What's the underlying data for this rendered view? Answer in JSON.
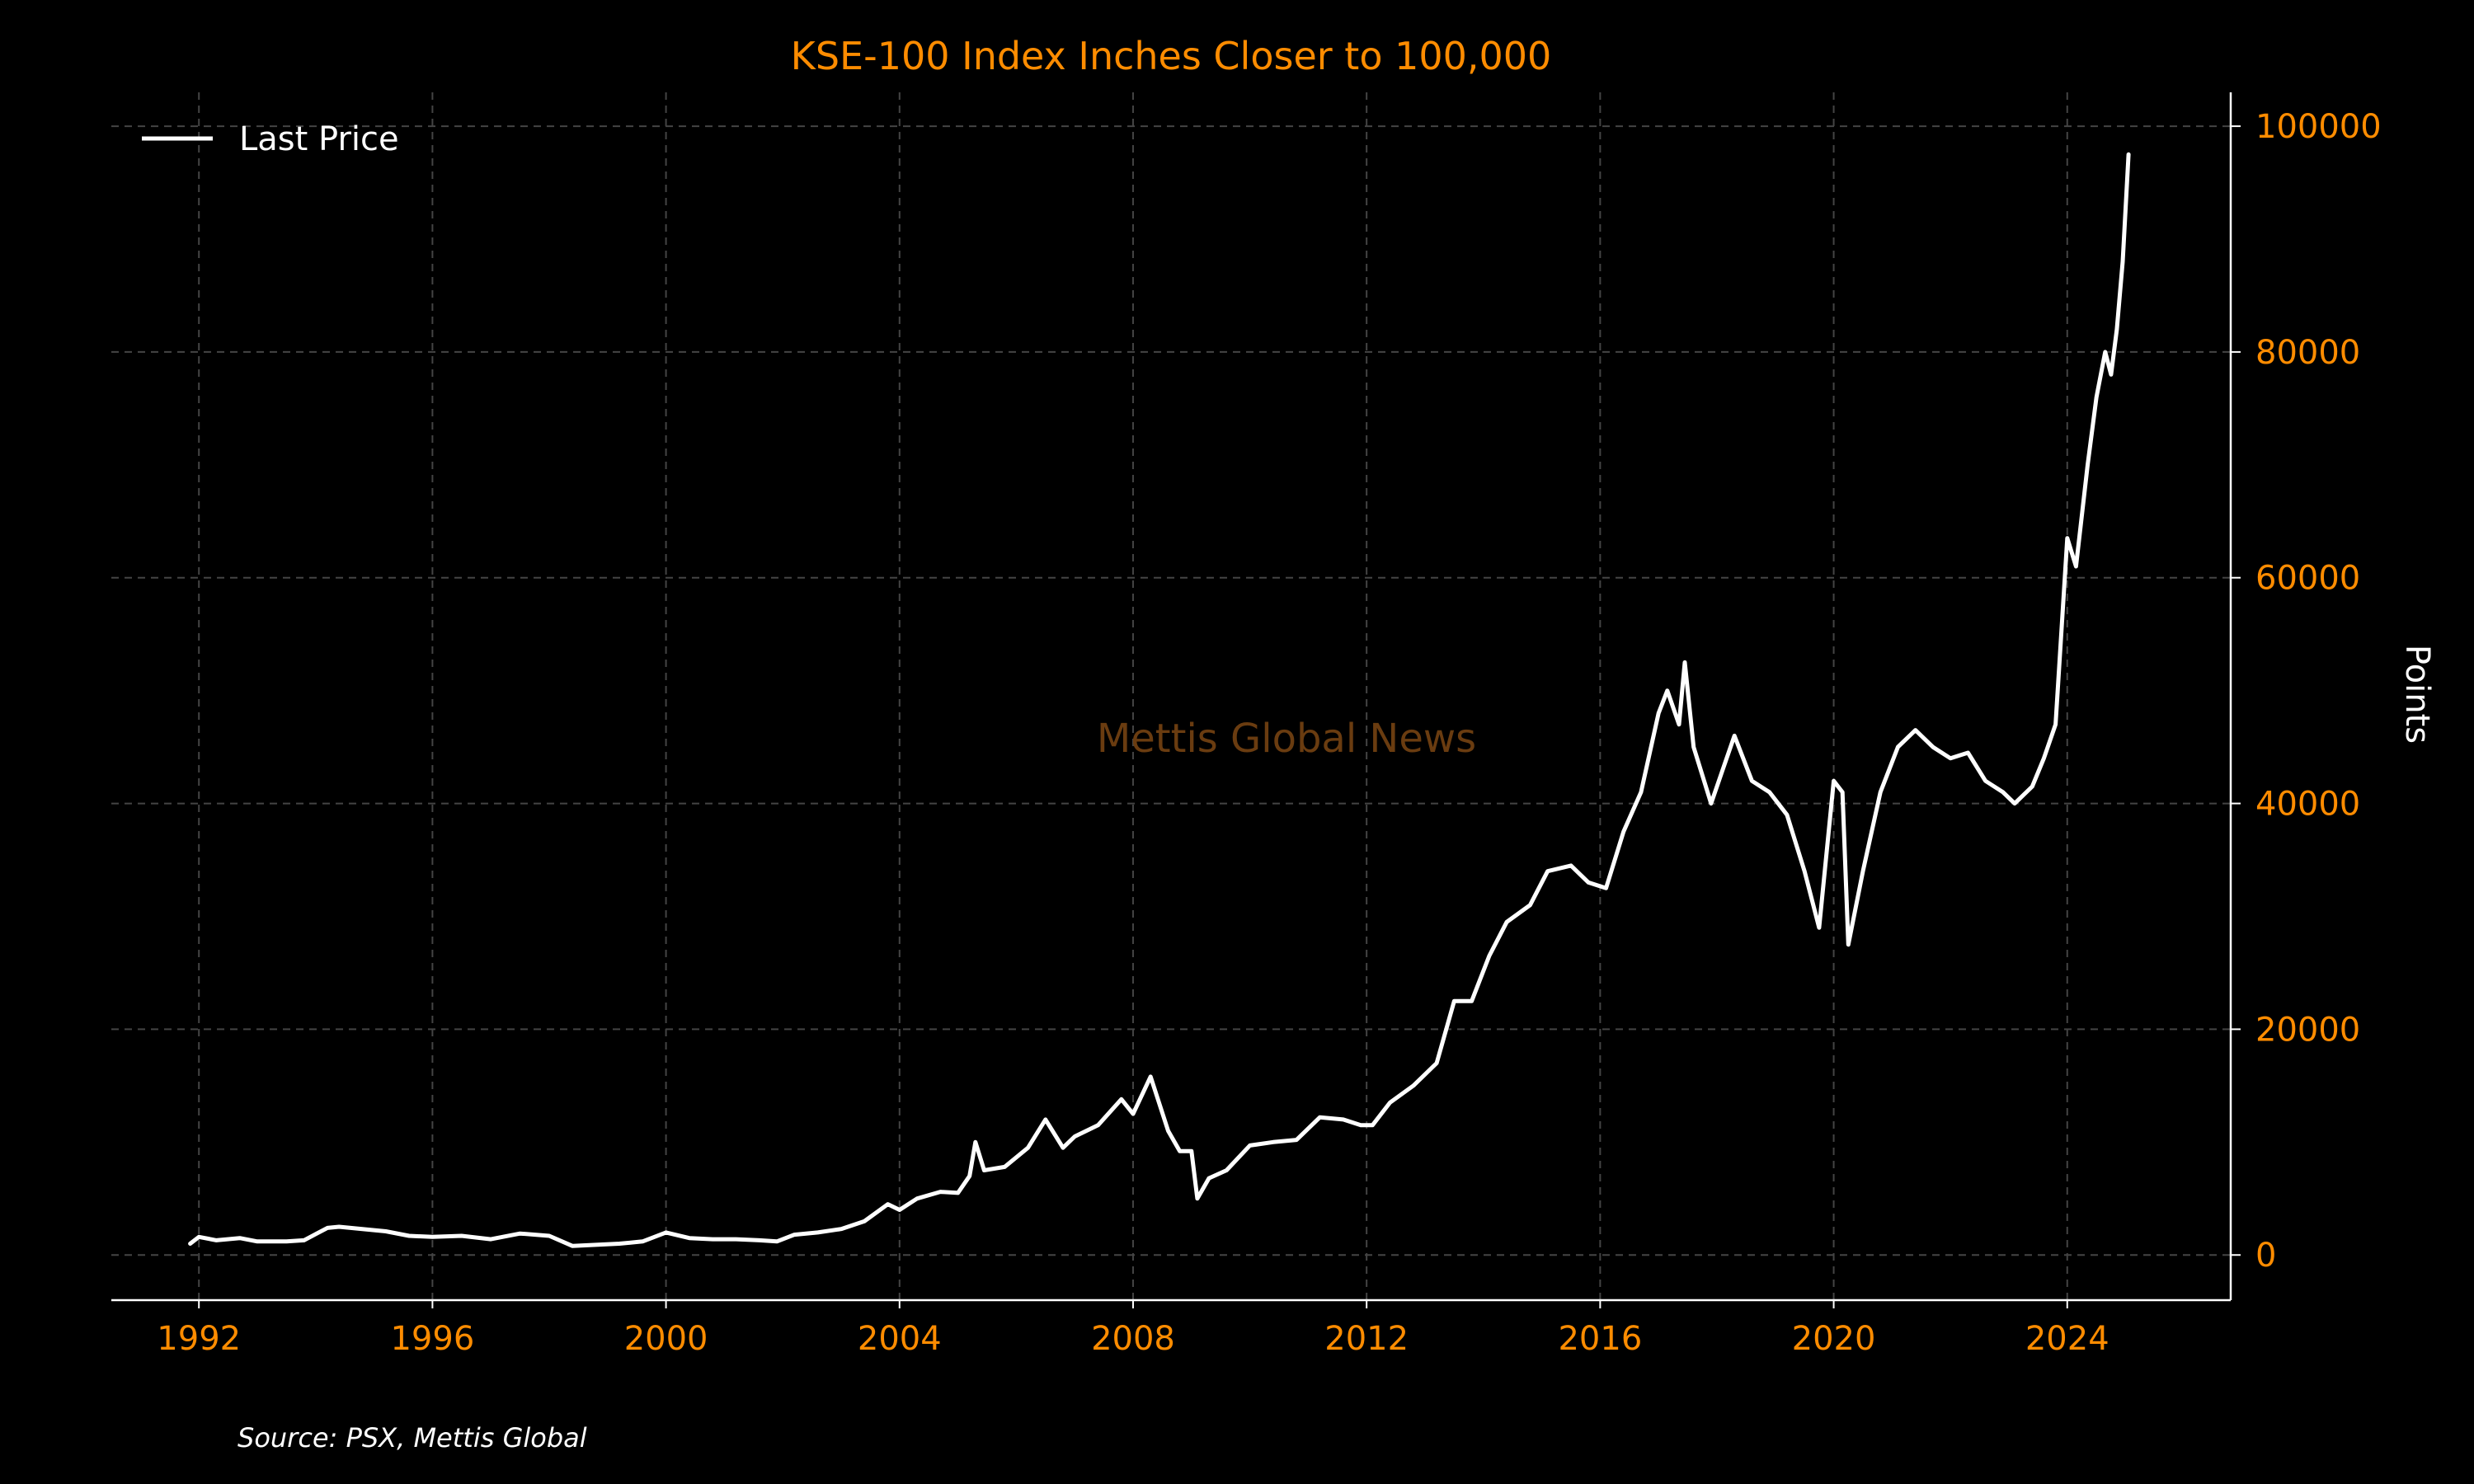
{
  "chart_data": {
    "type": "line",
    "title": "KSE-100 Index Inches Closer to 100,000",
    "xlabel": "",
    "ylabel": "Points",
    "xlim": [
      1990.5,
      2026.8
    ],
    "ylim": [
      -4000,
      103000
    ],
    "x_ticks": [
      1992,
      1996,
      2000,
      2004,
      2008,
      2012,
      2016,
      2020,
      2024
    ],
    "x_tick_labels": [
      "1992",
      "1996",
      "2000",
      "2004",
      "2008",
      "2012",
      "2016",
      "2020",
      "2024"
    ],
    "y_ticks": [
      0,
      20000,
      40000,
      60000,
      80000,
      100000
    ],
    "y_tick_labels": [
      "0",
      "20000",
      "40000",
      "60000",
      "80000",
      "100000"
    ],
    "grid": true,
    "legend_position": "top-left",
    "series": [
      {
        "name": "Last Price",
        "color": "#ffffff",
        "points": [
          [
            1991.85,
            1000
          ],
          [
            1992.0,
            1600
          ],
          [
            1992.3,
            1300
          ],
          [
            1992.7,
            1500
          ],
          [
            1993.0,
            1200
          ],
          [
            1993.5,
            1200
          ],
          [
            1993.8,
            1300
          ],
          [
            1994.2,
            2400
          ],
          [
            1994.4,
            2500
          ],
          [
            1994.8,
            2300
          ],
          [
            1995.2,
            2100
          ],
          [
            1995.6,
            1700
          ],
          [
            1996.0,
            1600
          ],
          [
            1996.5,
            1700
          ],
          [
            1997.0,
            1400
          ],
          [
            1997.5,
            1900
          ],
          [
            1998.0,
            1700
          ],
          [
            1998.4,
            800
          ],
          [
            1998.8,
            900
          ],
          [
            1999.2,
            1000
          ],
          [
            1999.6,
            1200
          ],
          [
            2000.0,
            2000
          ],
          [
            2000.4,
            1500
          ],
          [
            2000.8,
            1400
          ],
          [
            2001.2,
            1400
          ],
          [
            2001.6,
            1300
          ],
          [
            2001.9,
            1200
          ],
          [
            2002.2,
            1800
          ],
          [
            2002.6,
            2000
          ],
          [
            2003.0,
            2300
          ],
          [
            2003.4,
            3000
          ],
          [
            2003.8,
            4500
          ],
          [
            2004.0,
            4000
          ],
          [
            2004.3,
            5000
          ],
          [
            2004.7,
            5600
          ],
          [
            2005.0,
            5500
          ],
          [
            2005.2,
            7000
          ],
          [
            2005.3,
            10000
          ],
          [
            2005.45,
            7500
          ],
          [
            2005.8,
            7800
          ],
          [
            2006.2,
            9500
          ],
          [
            2006.5,
            12000
          ],
          [
            2006.8,
            9500
          ],
          [
            2007.0,
            10500
          ],
          [
            2007.4,
            11500
          ],
          [
            2007.8,
            13800
          ],
          [
            2008.0,
            12500
          ],
          [
            2008.3,
            15800
          ],
          [
            2008.6,
            11000
          ],
          [
            2008.8,
            9200
          ],
          [
            2009.0,
            9200
          ],
          [
            2009.1,
            5000
          ],
          [
            2009.3,
            6800
          ],
          [
            2009.6,
            7500
          ],
          [
            2010.0,
            9700
          ],
          [
            2010.4,
            10000
          ],
          [
            2010.8,
            10200
          ],
          [
            2011.2,
            12200
          ],
          [
            2011.6,
            12000
          ],
          [
            2011.9,
            11500
          ],
          [
            2012.1,
            11500
          ],
          [
            2012.4,
            13500
          ],
          [
            2012.8,
            15000
          ],
          [
            2013.2,
            17000
          ],
          [
            2013.5,
            22500
          ],
          [
            2013.8,
            22500
          ],
          [
            2014.1,
            26500
          ],
          [
            2014.4,
            29500
          ],
          [
            2014.8,
            31000
          ],
          [
            2015.1,
            34000
          ],
          [
            2015.5,
            34500
          ],
          [
            2015.8,
            33000
          ],
          [
            2016.1,
            32500
          ],
          [
            2016.4,
            37500
          ],
          [
            2016.7,
            41000
          ],
          [
            2017.0,
            48000
          ],
          [
            2017.15,
            50000
          ],
          [
            2017.35,
            47000
          ],
          [
            2017.45,
            52500
          ],
          [
            2017.6,
            45000
          ],
          [
            2017.9,
            40000
          ],
          [
            2018.1,
            43000
          ],
          [
            2018.3,
            46000
          ],
          [
            2018.6,
            42000
          ],
          [
            2018.9,
            41000
          ],
          [
            2019.2,
            39000
          ],
          [
            2019.5,
            34000
          ],
          [
            2019.75,
            29000
          ],
          [
            2020.0,
            42000
          ],
          [
            2020.15,
            41000
          ],
          [
            2020.25,
            27500
          ],
          [
            2020.5,
            34000
          ],
          [
            2020.8,
            41000
          ],
          [
            2021.1,
            45000
          ],
          [
            2021.4,
            46500
          ],
          [
            2021.7,
            45000
          ],
          [
            2022.0,
            44000
          ],
          [
            2022.3,
            44500
          ],
          [
            2022.6,
            42000
          ],
          [
            2022.9,
            41000
          ],
          [
            2023.1,
            40000
          ],
          [
            2023.4,
            41500
          ],
          [
            2023.6,
            44000
          ],
          [
            2023.8,
            47000
          ],
          [
            2024.0,
            63500
          ],
          [
            2024.15,
            61000
          ],
          [
            2024.35,
            70000
          ],
          [
            2024.5,
            76000
          ],
          [
            2024.65,
            80000
          ],
          [
            2024.75,
            78000
          ],
          [
            2024.85,
            82000
          ],
          [
            2024.95,
            88000
          ],
          [
            2025.05,
            97500
          ]
        ]
      }
    ],
    "legend": [
      {
        "label": "Last Price",
        "color": "#ffffff"
      }
    ],
    "annotations": [
      {
        "text": "Mettis Global News",
        "color": "#6a3c10"
      }
    ]
  },
  "footer": {
    "source": "Source: PSX, Mettis Global"
  }
}
